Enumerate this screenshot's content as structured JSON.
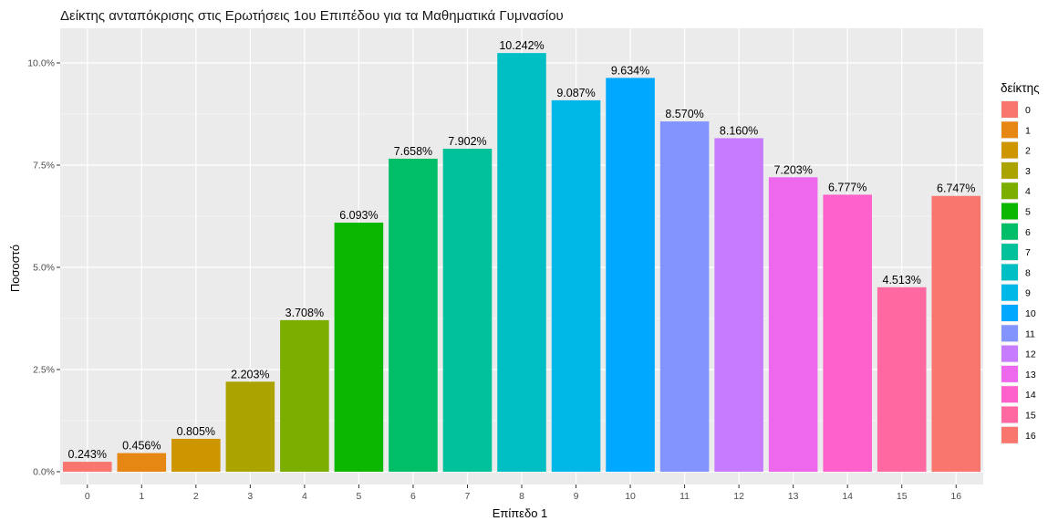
{
  "chart_data": {
    "type": "bar",
    "title": "Δείκτης ανταπόκρισης στις Ερωτήσεις 1ου Επιπέδου για τα Μαθηματικά Γυμνασίου",
    "xlabel": "Επίπεδο 1",
    "ylabel": "Ποσοστό",
    "categories": [
      "0",
      "1",
      "2",
      "3",
      "4",
      "5",
      "6",
      "7",
      "8",
      "9",
      "10",
      "11",
      "12",
      "13",
      "14",
      "15",
      "16"
    ],
    "values": [
      0.243,
      0.456,
      0.805,
      2.203,
      3.708,
      6.093,
      7.658,
      7.902,
      10.242,
      9.087,
      9.634,
      8.57,
      8.16,
      7.203,
      6.777,
      4.513,
      6.747
    ],
    "data_labels": [
      "0.243%",
      "0.456%",
      "0.805%",
      "2.203%",
      "3.708%",
      "6.093%",
      "7.658%",
      "7.902%",
      "10.242%",
      "9.087%",
      "9.634%",
      "8.570%",
      "8.160%",
      "7.203%",
      "6.777%",
      "4.513%",
      "6.747%"
    ],
    "yticks": [
      0,
      2.5,
      5,
      7.5,
      10
    ],
    "ytick_labels": [
      "0.0%",
      "2.5%",
      "5.0%",
      "7.5%",
      "10.0%"
    ],
    "ylim": [
      0,
      10.75
    ],
    "grid": true,
    "legend": {
      "title": "δείκτης",
      "placement": "right",
      "entries": [
        "0",
        "1",
        "2",
        "3",
        "4",
        "5",
        "6",
        "7",
        "8",
        "9",
        "10",
        "11",
        "12",
        "13",
        "14",
        "15",
        "16"
      ]
    },
    "colors": [
      "#F8766D",
      "#E68613",
      "#CD9600",
      "#ABA300",
      "#7CAE00",
      "#0CB702",
      "#00BE67",
      "#00C19A",
      "#00BFC4",
      "#00B8E7",
      "#00A9FF",
      "#8494FF",
      "#C77CFF",
      "#ED68ED",
      "#FF61CC",
      "#FF68A1",
      "#F8766D"
    ],
    "panel_background": "#EBEBEB"
  }
}
